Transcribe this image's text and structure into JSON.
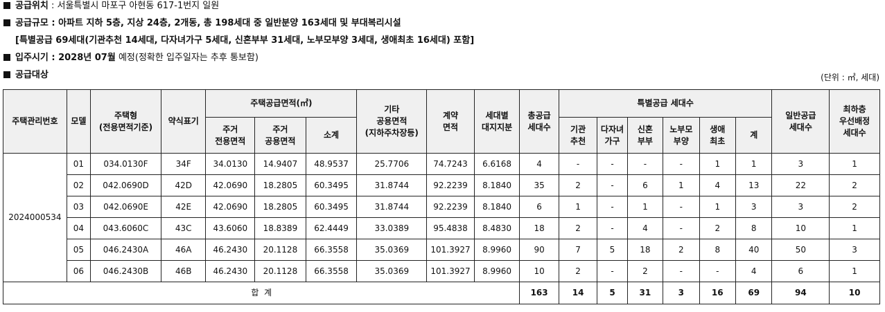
{
  "info": {
    "location_label": "공급위치",
    "location_value": " : 서울특별시 마포구 아현동 617-1번지 일원",
    "scale_label": "공급규모",
    "scale_value": " : 아파트 지하 5층, 지상 24층, 2개동, 총 198세대 중 일반분양 163세대 및 부대복리시설",
    "special_line": "[특별공급 69세대(기관추천 14세대, 다자녀가구 5세대, 신혼부부 31세대, 노부모부양 3세대, 생애최초 16세대) 포함]",
    "movein_label": "입주시기",
    "movein_date": " : 2028년 07월",
    "movein_note": " 예정(정확한 입주일자는 추후 통보함)",
    "target_label": "공급대상",
    "unit_note": "(단위 : ㎡, 세대)"
  },
  "table": {
    "headers": {
      "mgmt_no": "주택관리번호",
      "model": "모델",
      "type_1": "주택형",
      "type_2": "(전용면적기준)",
      "abbr": "약식표기",
      "area_group": "주택공급면적(㎡)",
      "excl_1": "주거",
      "excl_2": "전용면적",
      "common_1": "주거",
      "common_2": "공용면적",
      "subtotal": "소계",
      "other_1": "기타",
      "other_2": "공용면적",
      "other_3": "(지하주차장등)",
      "contract_1": "계약",
      "contract_2": "면적",
      "land_1": "세대별",
      "land_2": "대지지분",
      "total_1": "총공급",
      "total_2": "세대수",
      "special_group": "특별공급 세대수",
      "inst_1": "기관",
      "inst_2": "추천",
      "multi_1": "다자녀",
      "multi_2": "가구",
      "newlywed_1": "신혼",
      "newlywed_2": "부부",
      "elderly_1": "노부모",
      "elderly_2": "부양",
      "first_1": "생애",
      "first_2": "최초",
      "sp_sum": "계",
      "general_1": "일반공급",
      "general_2": "세대수",
      "top_1": "최하층",
      "top_2": "우선배정",
      "top_3": "세대수"
    },
    "mgmt_no_value": "2024000534",
    "rows": [
      {
        "model": "01",
        "type": "034.0130F",
        "abbr": "34F",
        "excl": "34.0130",
        "common": "14.9407",
        "subtotal": "48.9537",
        "other": "25.7706",
        "contract": "74.7243",
        "land": "6.6168",
        "total": "4",
        "inst": "-",
        "multi": "-",
        "newlywed": "-",
        "elderly": "-",
        "first": "1",
        "sp_sum": "1",
        "general": "3",
        "top": "1"
      },
      {
        "model": "02",
        "type": "042.0690D",
        "abbr": "42D",
        "excl": "42.0690",
        "common": "18.2805",
        "subtotal": "60.3495",
        "other": "31.8744",
        "contract": "92.2239",
        "land": "8.1840",
        "total": "35",
        "inst": "2",
        "multi": "-",
        "newlywed": "6",
        "elderly": "1",
        "first": "4",
        "sp_sum": "13",
        "general": "22",
        "top": "2"
      },
      {
        "model": "03",
        "type": "042.0690E",
        "abbr": "42E",
        "excl": "42.0690",
        "common": "18.2805",
        "subtotal": "60.3495",
        "other": "31.8744",
        "contract": "92.2239",
        "land": "8.1840",
        "total": "6",
        "inst": "1",
        "multi": "-",
        "newlywed": "1",
        "elderly": "-",
        "first": "1",
        "sp_sum": "3",
        "general": "3",
        "top": "2"
      },
      {
        "model": "04",
        "type": "043.6060C",
        "abbr": "43C",
        "excl": "43.6060",
        "common": "18.8389",
        "subtotal": "62.4449",
        "other": "33.0389",
        "contract": "95.4838",
        "land": "8.4830",
        "total": "18",
        "inst": "2",
        "multi": "-",
        "newlywed": "4",
        "elderly": "-",
        "first": "2",
        "sp_sum": "8",
        "general": "10",
        "top": "1"
      },
      {
        "model": "05",
        "type": "046.2430A",
        "abbr": "46A",
        "excl": "46.2430",
        "common": "20.1128",
        "subtotal": "66.3558",
        "other": "35.0369",
        "contract": "101.3927",
        "land": "8.9960",
        "total": "90",
        "inst": "7",
        "multi": "5",
        "newlywed": "18",
        "elderly": "2",
        "first": "8",
        "sp_sum": "40",
        "general": "50",
        "top": "3"
      },
      {
        "model": "06",
        "type": "046.2430B",
        "abbr": "46B",
        "excl": "46.2430",
        "common": "20.1128",
        "subtotal": "66.3558",
        "other": "35.0369",
        "contract": "101.3927",
        "land": "8.9960",
        "total": "10",
        "inst": "2",
        "multi": "-",
        "newlywed": "2",
        "elderly": "-",
        "first": "-",
        "sp_sum": "4",
        "general": "6",
        "top": "1"
      }
    ],
    "sum": {
      "label": "합  계",
      "total": "163",
      "inst": "14",
      "multi": "5",
      "newlywed": "31",
      "elderly": "3",
      "first": "16",
      "sp_sum": "69",
      "general": "94",
      "top": "10"
    }
  }
}
